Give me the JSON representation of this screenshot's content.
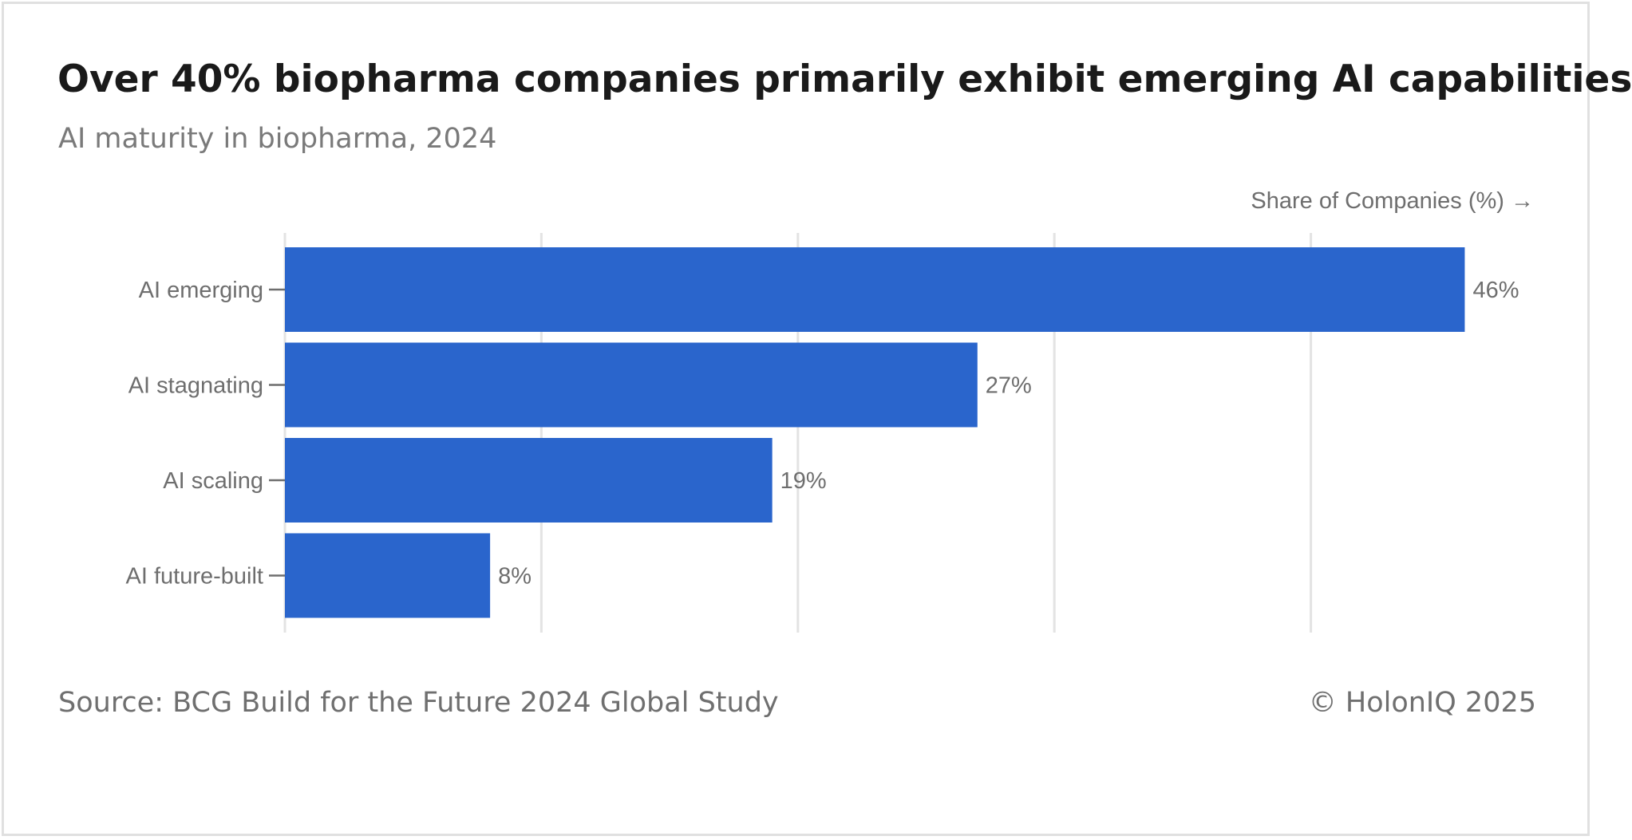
{
  "title": "Over 40% biopharma companies primarily exhibit emerging AI capabilities",
  "subtitle": "AI maturity in biopharma, 2024",
  "source": "Source: BCG Build for the Future 2024 Global Study",
  "copyright": "© HolonIQ 2025",
  "colors": {
    "bar": "#2a65cc",
    "grid": "#e3e3e3",
    "label": "#6e6e6e"
  },
  "chart_data": {
    "type": "bar",
    "orientation": "horizontal",
    "title": "Over 40% biopharma companies primarily exhibit emerging AI capabilities",
    "subtitle": "AI maturity in biopharma, 2024",
    "xlabel": "Share of Companies (%) →",
    "ylabel": "",
    "categories": [
      "AI emerging",
      "AI stagnating",
      "AI scaling",
      "AI future-built"
    ],
    "values": [
      46,
      27,
      19,
      8
    ],
    "data_labels": [
      "46%",
      "27%",
      "19%",
      "8%"
    ],
    "xlim": [
      0,
      50
    ],
    "grid": true
  }
}
